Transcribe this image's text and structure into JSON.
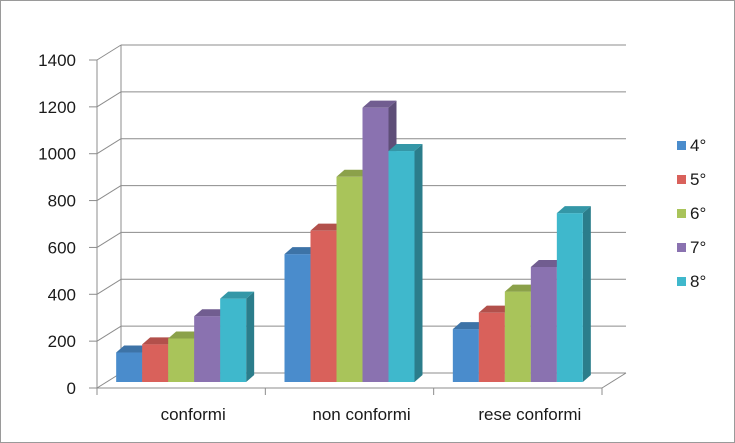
{
  "chart_data": {
    "type": "bar",
    "style": "3d-clustered-column",
    "categories": [
      "conformi",
      "non conformi",
      "rese conformi"
    ],
    "series": [
      {
        "name": "4°",
        "values": [
          160,
          580,
          260
        ],
        "color": "#4a8ccc"
      },
      {
        "name": "5°",
        "values": [
          195,
          680,
          330
        ],
        "color": "#d9615b"
      },
      {
        "name": "6°",
        "values": [
          220,
          910,
          420
        ],
        "color": "#a9c45a"
      },
      {
        "name": "7°",
        "values": [
          315,
          1205,
          525
        ],
        "color": "#8a72b0"
      },
      {
        "name": "8°",
        "values": [
          390,
          1020,
          755
        ],
        "color": "#3fb8cc"
      }
    ],
    "yticks": [
      0,
      200,
      400,
      600,
      800,
      1000,
      1200,
      1400
    ],
    "ylim": [
      0,
      1400
    ],
    "grid": true,
    "legend": "right"
  }
}
